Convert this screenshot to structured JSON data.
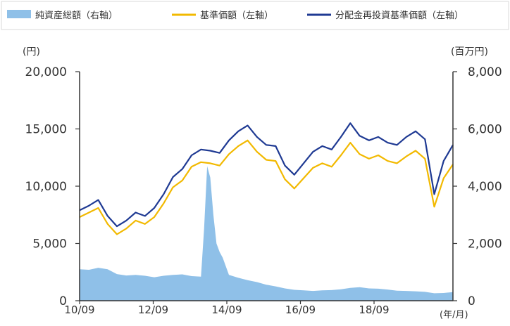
{
  "legend": {
    "items": [
      {
        "label": "純資産総額（右軸）",
        "color": "#8fc0e8",
        "kind": "area"
      },
      {
        "label": "基準価額（左軸）",
        "color": "#f2b900",
        "kind": "line"
      },
      {
        "label": "分配金再投資基準価額（左軸）",
        "color": "#1f3a93",
        "kind": "line"
      }
    ]
  },
  "chart_data": {
    "type": "line",
    "title": "",
    "x_unit_label": "(年/月)",
    "y_left_unit": "(円)",
    "y_right_unit": "(百万円)",
    "x_ticks": [
      "10/09",
      "12/09",
      "14/09",
      "16/09",
      "18/09"
    ],
    "x_range": [
      "2010-09",
      "2020-09"
    ],
    "y_left_ticks": [
      "20,000",
      "15,000",
      "10,000",
      "5,000",
      "0"
    ],
    "y_left_range": [
      0,
      20000
    ],
    "y_right_ticks": [
      "8,000",
      "6,000",
      "4,000",
      "2,000",
      "0"
    ],
    "y_right_range": [
      0,
      8000
    ],
    "grid": false,
    "legend_position": "top",
    "series": [
      {
        "name": "純資産総額（右軸）",
        "axis": "right",
        "kind": "area",
        "color": "#8fc0e8",
        "x": [
          "2010-09",
          "2010-12",
          "2011-03",
          "2011-06",
          "2011-09",
          "2011-12",
          "2012-03",
          "2012-06",
          "2012-09",
          "2012-12",
          "2013-03",
          "2013-06",
          "2013-09",
          "2013-12",
          "2014-01",
          "2014-02",
          "2014-03",
          "2014-04",
          "2014-05",
          "2014-06",
          "2014-07",
          "2014-09",
          "2014-12",
          "2015-03",
          "2015-06",
          "2015-09",
          "2015-12",
          "2016-03",
          "2016-06",
          "2016-09",
          "2016-12",
          "2017-03",
          "2017-06",
          "2017-09",
          "2017-12",
          "2018-03",
          "2018-06",
          "2018-09",
          "2018-12",
          "2019-03",
          "2019-06",
          "2019-09",
          "2019-12",
          "2020-03",
          "2020-06",
          "2020-09"
        ],
        "values": [
          1100,
          1080,
          1150,
          1100,
          930,
          880,
          900,
          870,
          820,
          870,
          900,
          920,
          860,
          840,
          2500,
          4700,
          4300,
          3000,
          2000,
          1700,
          1500,
          900,
          800,
          720,
          650,
          560,
          500,
          430,
          380,
          360,
          340,
          360,
          370,
          400,
          450,
          470,
          430,
          420,
          390,
          350,
          340,
          330,
          310,
          260,
          270,
          300
        ]
      },
      {
        "name": "基準価額（左軸）",
        "axis": "left",
        "kind": "line",
        "color": "#f2b900",
        "x": [
          "2010-09",
          "2010-12",
          "2011-03",
          "2011-06",
          "2011-09",
          "2011-12",
          "2012-03",
          "2012-06",
          "2012-09",
          "2012-12",
          "2013-03",
          "2013-06",
          "2013-09",
          "2013-12",
          "2014-03",
          "2014-06",
          "2014-09",
          "2014-12",
          "2015-03",
          "2015-06",
          "2015-09",
          "2015-12",
          "2016-03",
          "2016-06",
          "2016-09",
          "2016-12",
          "2017-03",
          "2017-06",
          "2017-09",
          "2017-12",
          "2018-03",
          "2018-06",
          "2018-09",
          "2018-12",
          "2019-03",
          "2019-06",
          "2019-09",
          "2019-12",
          "2020-03",
          "2020-06",
          "2020-09"
        ],
        "values": [
          7300,
          7700,
          8100,
          6700,
          5800,
          6300,
          7000,
          6700,
          7300,
          8500,
          9900,
          10500,
          11700,
          12100,
          12000,
          11800,
          12800,
          13500,
          14000,
          13000,
          12300,
          12200,
          10600,
          9800,
          10700,
          11600,
          12000,
          11700,
          12700,
          13800,
          12800,
          12400,
          12700,
          12200,
          12000,
          12600,
          13100,
          12400,
          8200,
          10700,
          11900
        ]
      },
      {
        "name": "分配金再投資基準価額（左軸）",
        "axis": "left",
        "kind": "line",
        "color": "#1f3a93",
        "x": [
          "2010-09",
          "2010-12",
          "2011-03",
          "2011-06",
          "2011-09",
          "2011-12",
          "2012-03",
          "2012-06",
          "2012-09",
          "2012-12",
          "2013-03",
          "2013-06",
          "2013-09",
          "2013-12",
          "2014-03",
          "2014-06",
          "2014-09",
          "2014-12",
          "2015-03",
          "2015-06",
          "2015-09",
          "2015-12",
          "2016-03",
          "2016-06",
          "2016-09",
          "2016-12",
          "2017-03",
          "2017-06",
          "2017-09",
          "2017-12",
          "2018-03",
          "2018-06",
          "2018-09",
          "2018-12",
          "2019-03",
          "2019-06",
          "2019-09",
          "2019-12",
          "2020-03",
          "2020-06",
          "2020-09"
        ],
        "values": [
          7900,
          8300,
          8800,
          7400,
          6500,
          7000,
          7700,
          7400,
          8100,
          9300,
          10800,
          11500,
          12700,
          13200,
          13100,
          12900,
          14000,
          14800,
          15300,
          14300,
          13600,
          13500,
          11800,
          11000,
          12000,
          13000,
          13500,
          13200,
          14300,
          15500,
          14400,
          14000,
          14300,
          13800,
          13600,
          14300,
          14800,
          14100,
          9300,
          12200,
          13600
        ]
      }
    ]
  }
}
